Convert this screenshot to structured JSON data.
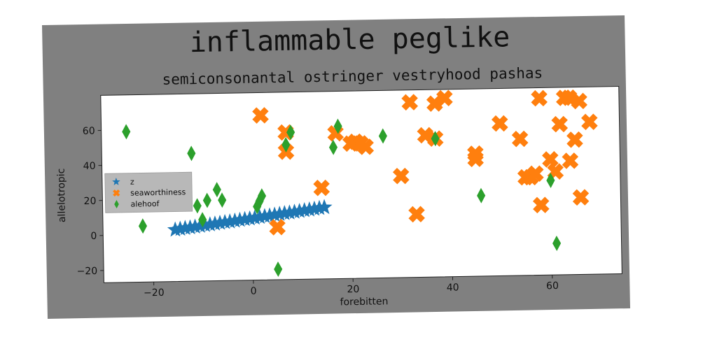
{
  "chart_data": {
    "type": "scatter",
    "title": "inflammable peglike",
    "subtitle": "semiconsonantal ostringer vestryhood pashas",
    "xlabel": "forebitten",
    "ylabel": "allelotropic",
    "xlim": [
      -30,
      74
    ],
    "ylim": [
      -27,
      80
    ],
    "xticks": [
      -20,
      0,
      20,
      40,
      60
    ],
    "yticks": [
      -20,
      0,
      20,
      40,
      60
    ],
    "xtick_labels": [
      "−20",
      "0",
      "20",
      "40",
      "60"
    ],
    "ytick_labels": [
      "−20",
      "0",
      "20",
      "40",
      "60"
    ],
    "legend_position": "center-left",
    "colors": {
      "z": "#1f77b4",
      "seaworthiness": "#ff7f0e",
      "alehoof": "#2ca02c",
      "frame": "#808080"
    },
    "series": [
      {
        "name": "z",
        "marker": "star",
        "x": [
          -15.5,
          -14.5,
          -13.5,
          -12.5,
          -11.5,
          -10.5,
          -9.5,
          -8.5,
          -7.5,
          -6.5,
          -5.5,
          -4.5,
          -3.5,
          -2.5,
          -1.5,
          -0.5,
          0.5,
          1.5,
          2.5,
          3.5,
          4.5,
          5.5,
          6.5,
          7.5,
          8.5,
          9.5,
          10.5,
          11.5,
          12.5,
          13.5,
          14.5
        ],
        "y": [
          2.5,
          2.9,
          3.3,
          3.6,
          4.0,
          4.4,
          4.8,
          5.1,
          5.5,
          5.9,
          6.3,
          6.6,
          7.0,
          7.4,
          7.8,
          8.1,
          8.5,
          8.9,
          9.3,
          9.6,
          10.0,
          10.4,
          10.8,
          11.1,
          11.5,
          11.9,
          12.3,
          12.6,
          13.0,
          13.4,
          13.8
        ]
      },
      {
        "name": "seaworthiness",
        "marker": "X",
        "x": [
          2,
          5,
          7,
          7,
          14,
          17,
          20,
          21,
          22,
          23,
          30,
          32,
          33,
          35,
          37,
          37,
          39,
          45,
          45,
          50,
          54,
          55,
          56,
          57,
          58,
          58,
          60,
          61,
          62,
          63,
          64,
          64,
          65,
          66,
          66,
          68
        ],
        "y": [
          67,
          3,
          46,
          57,
          25,
          56,
          50,
          51,
          50,
          48,
          31,
          73,
          9,
          54,
          72,
          52,
          75,
          43,
          40,
          60,
          51,
          29,
          29,
          31,
          74,
          13,
          39,
          32,
          59,
          74,
          74,
          38,
          50,
          17,
          72,
          60
        ]
      },
      {
        "name": "alehoof",
        "marker": "diamond",
        "x": [
          -25,
          -22,
          -12,
          -11,
          -10,
          -9,
          -7,
          -6,
          1,
          1.5,
          2,
          5,
          7,
          8,
          16.5,
          17.5,
          26.5,
          37,
          46,
          60,
          61
        ],
        "y": [
          59,
          5,
          46,
          16,
          8,
          19,
          25,
          19,
          15,
          18,
          21,
          -21,
          50,
          57,
          48,
          60,
          54,
          52,
          19,
          27,
          -9
        ]
      }
    ]
  }
}
